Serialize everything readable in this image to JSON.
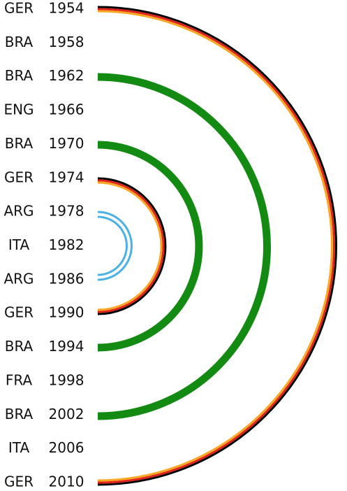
{
  "rows": [
    {
      "country": "GER",
      "year": "1954"
    },
    {
      "country": "BRA",
      "year": "1958"
    },
    {
      "country": "BRA",
      "year": "1962"
    },
    {
      "country": "ENG",
      "year": "1966"
    },
    {
      "country": "BRA",
      "year": "1970"
    },
    {
      "country": "GER",
      "year": "1974"
    },
    {
      "country": "ARG",
      "year": "1978"
    },
    {
      "country": "ITA",
      "year": "1982"
    },
    {
      "country": "ARG",
      "year": "1986"
    },
    {
      "country": "GER",
      "year": "1990"
    },
    {
      "country": "BRA",
      "year": "1994"
    },
    {
      "country": "FRA",
      "year": "1998"
    },
    {
      "country": "BRA",
      "year": "2002"
    },
    {
      "country": "ITA",
      "year": "2006"
    },
    {
      "country": "GER",
      "year": "2010"
    }
  ]
}
